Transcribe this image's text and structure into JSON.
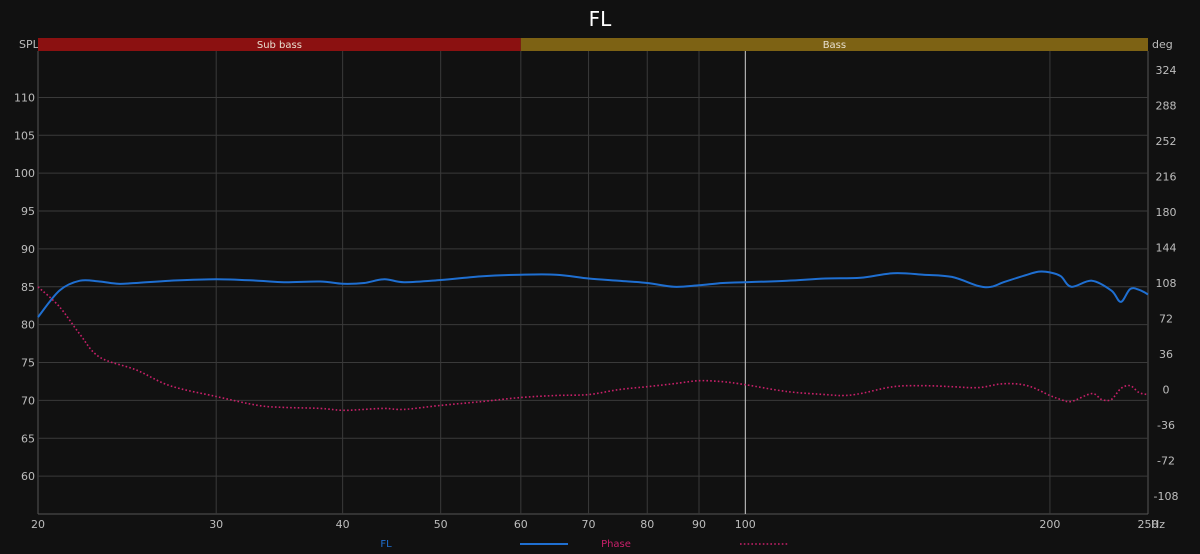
{
  "chart_data": {
    "type": "line",
    "title": "FL",
    "x_scale": "log",
    "xlim": [
      20,
      250
    ],
    "x_unit": "Hz",
    "x_ticks": [
      20,
      30,
      40,
      50,
      60,
      70,
      80,
      90,
      100,
      200,
      250
    ],
    "x_tick_labels": [
      "20",
      "30",
      "40",
      "50",
      "60",
      "70",
      "80",
      "90",
      "100",
      "200",
      "250"
    ],
    "y_left_label": "SPL",
    "y_left_range": [
      55,
      116
    ],
    "y_left_ticks": [
      60,
      65,
      70,
      75,
      80,
      85,
      90,
      95,
      100,
      105,
      110
    ],
    "y_right_label": "deg",
    "y_right_range": [
      -126,
      342
    ],
    "y_right_ticks": [
      -108,
      -72,
      -36,
      0,
      36,
      72,
      108,
      144,
      180,
      216,
      252,
      288,
      324
    ],
    "grid": true,
    "marker_x": 100,
    "bands": [
      {
        "label": "Sub bass",
        "from": 20,
        "to": 60,
        "color": "#8b1111"
      },
      {
        "label": "Bass",
        "from": 60,
        "to": 250,
        "color": "#7d6214"
      }
    ],
    "series": [
      {
        "name": "FL",
        "axis": "left",
        "color": "#1f6fd1",
        "style": "solid",
        "x": [
          20,
          21,
          22,
          23,
          24,
          25,
          27,
          30,
          33,
          35,
          38,
          40,
          42,
          44,
          46,
          50,
          55,
          60,
          65,
          70,
          75,
          80,
          85,
          90,
          95,
          100,
          110,
          120,
          130,
          140,
          150,
          160,
          170,
          175,
          180,
          190,
          195,
          200,
          205,
          210,
          220,
          230,
          235,
          240,
          245,
          250
        ],
        "y": [
          81.0,
          84.5,
          85.8,
          85.7,
          85.4,
          85.5,
          85.8,
          86.0,
          85.8,
          85.6,
          85.7,
          85.4,
          85.5,
          86.0,
          85.6,
          85.9,
          86.4,
          86.6,
          86.6,
          86.1,
          85.8,
          85.5,
          85.0,
          85.2,
          85.5,
          85.6,
          85.8,
          86.1,
          86.2,
          86.8,
          86.6,
          86.3,
          85.1,
          85.0,
          85.6,
          86.6,
          87.0,
          86.9,
          86.4,
          85.0,
          85.8,
          84.5,
          83.0,
          84.7,
          84.6,
          84.0
        ]
      },
      {
        "name": "Phase",
        "axis": "right",
        "color": "#c9206a",
        "style": "dotted",
        "x": [
          20,
          21,
          22,
          23,
          25,
          27,
          30,
          33,
          35,
          38,
          40,
          42,
          44,
          46,
          50,
          55,
          60,
          65,
          70,
          75,
          80,
          85,
          90,
          95,
          100,
          110,
          120,
          125,
          130,
          140,
          150,
          160,
          170,
          180,
          190,
          200,
          205,
          210,
          220,
          225,
          230,
          235,
          240,
          245,
          250
        ],
        "y": [
          104,
          84,
          56,
          33,
          20,
          4,
          -7,
          -16,
          -18,
          -19,
          -21,
          -20,
          -19,
          -20,
          -16,
          -12,
          -8,
          -6,
          -5,
          0,
          3,
          6,
          9,
          8,
          5,
          -2,
          -5,
          -6,
          -4,
          3,
          4,
          3,
          2,
          6,
          4,
          -6,
          -10,
          -12,
          -4,
          -10,
          -10,
          1,
          4,
          -3,
          -5
        ]
      }
    ],
    "legend": [
      {
        "label": "FL",
        "color": "#1f6fd1",
        "style": "solid"
      },
      {
        "label": "Phase",
        "color": "#c9206a",
        "style": "dotted"
      }
    ]
  }
}
